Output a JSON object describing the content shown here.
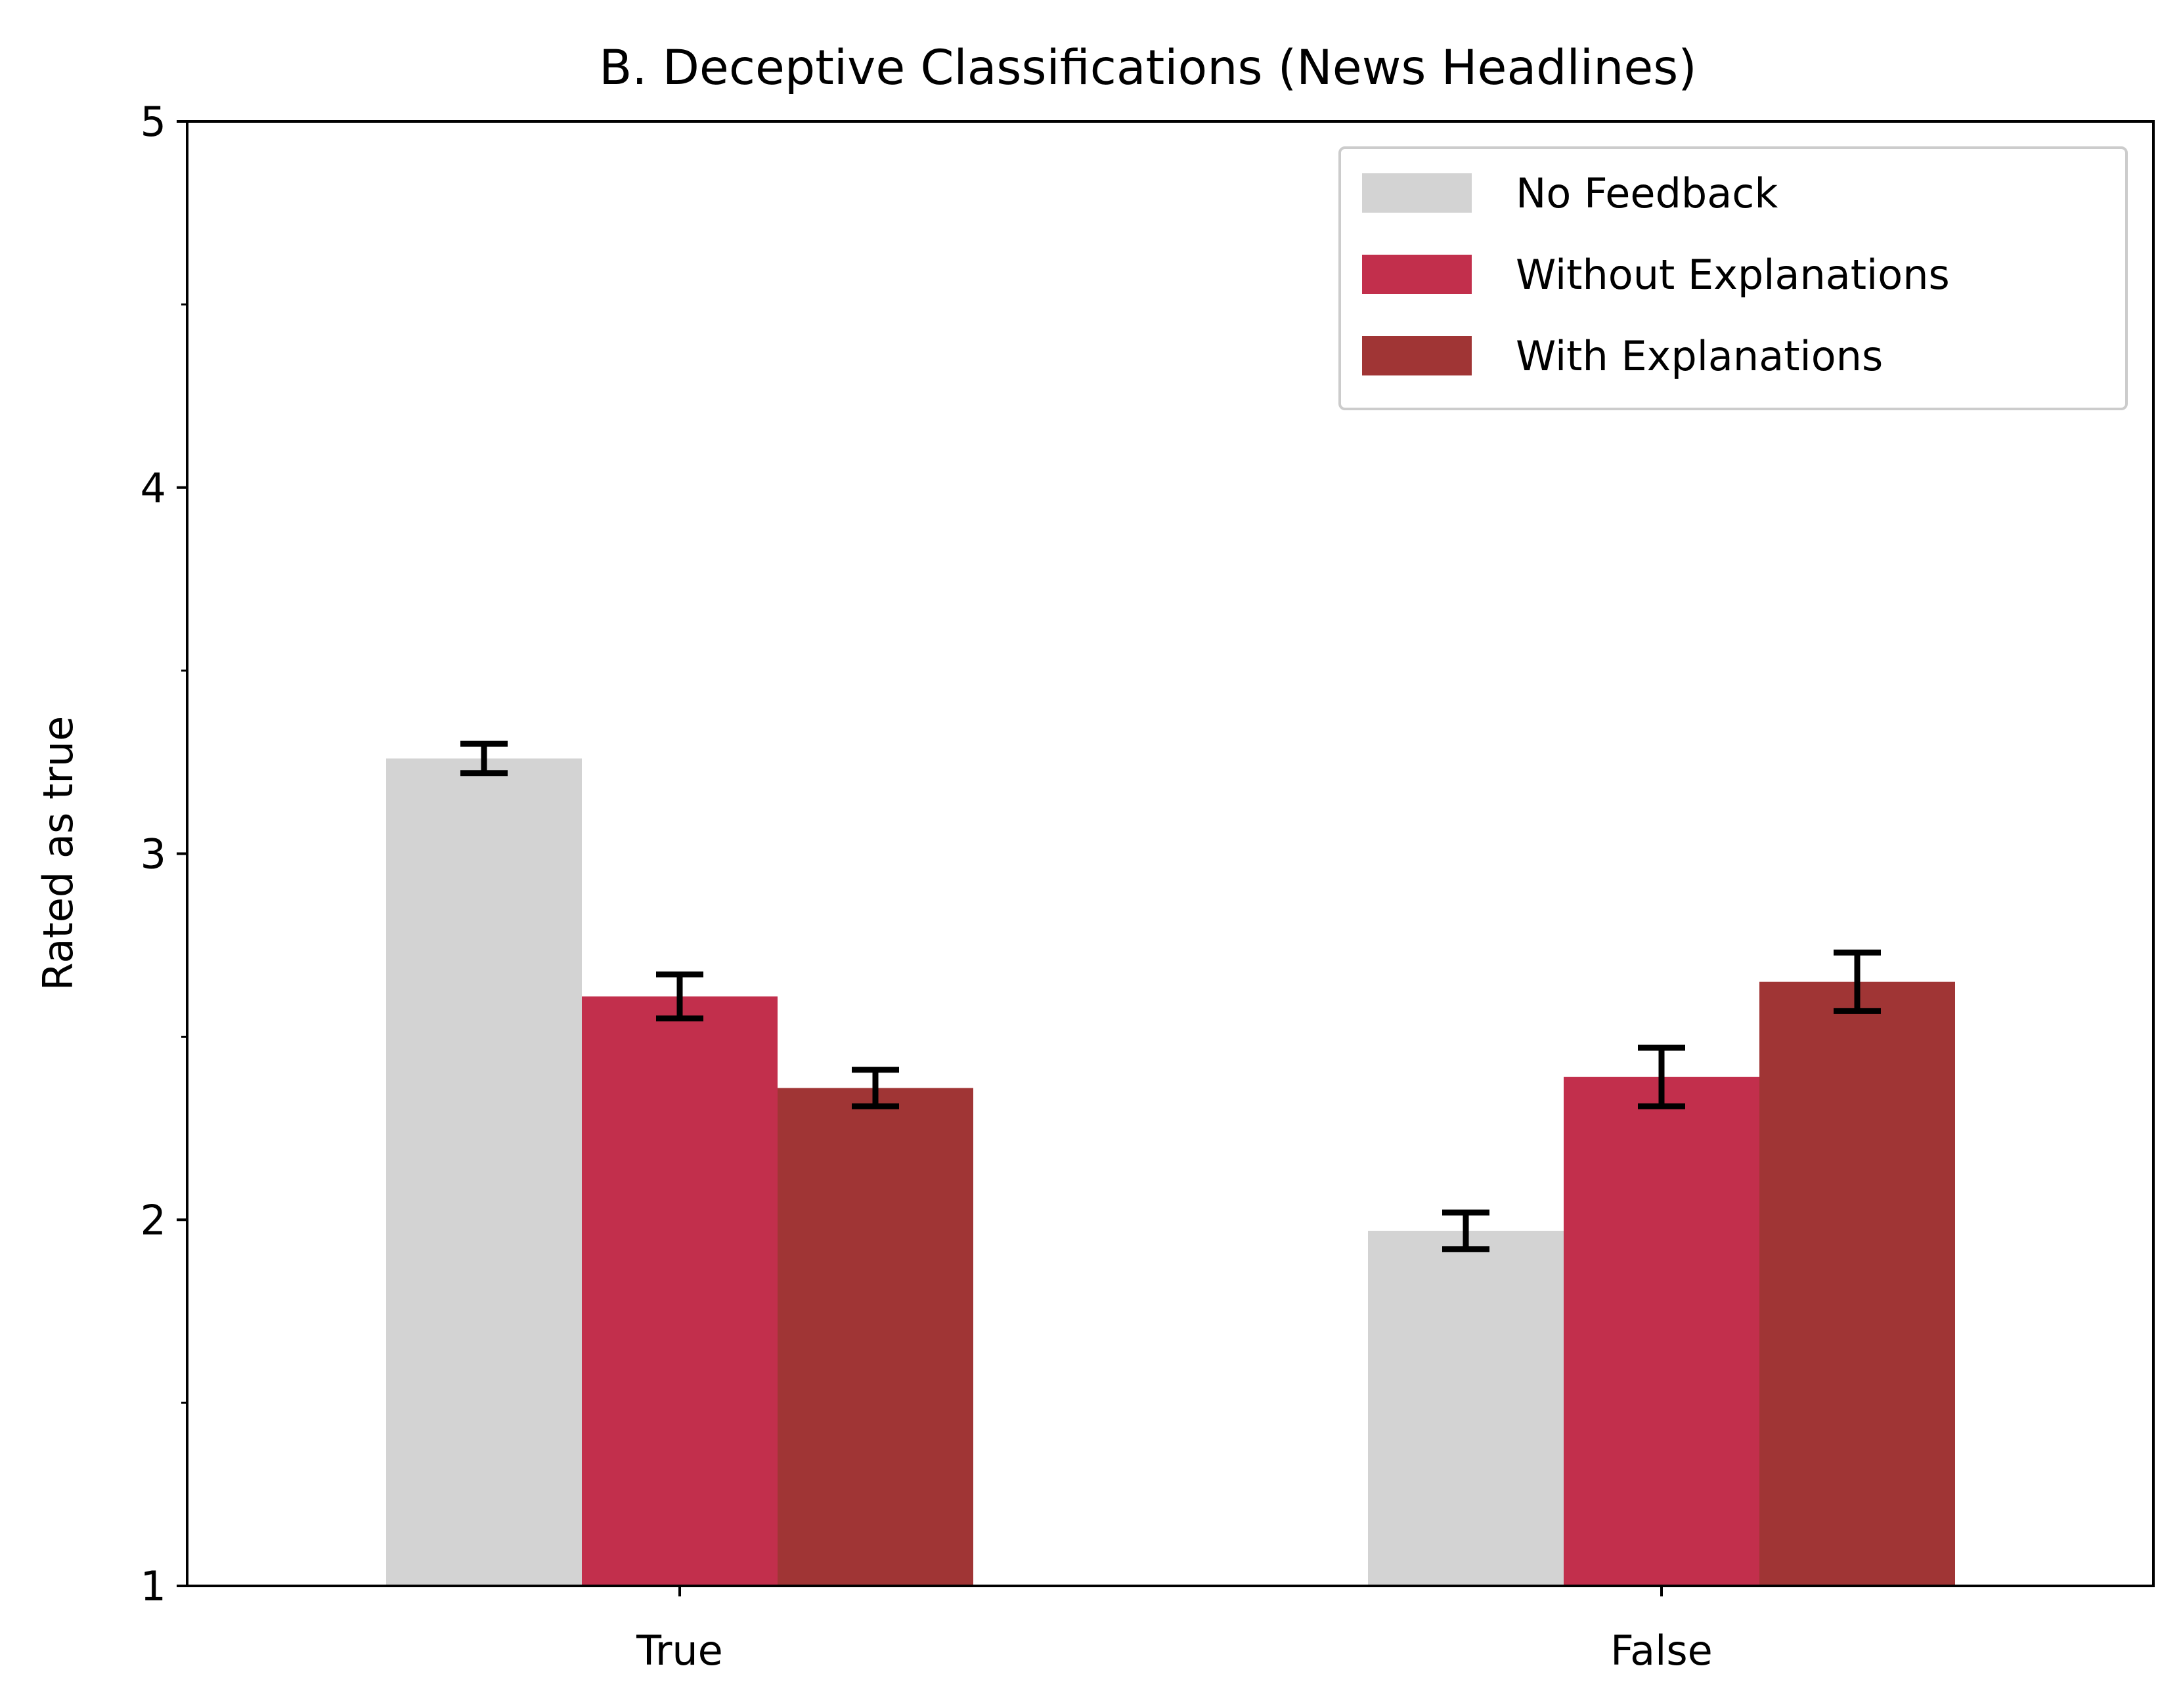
{
  "chart_data": {
    "type": "bar",
    "title": "B. Deceptive Classifications (News Headlines)",
    "xlabel": "",
    "ylabel": "Rated as true",
    "ylim": [
      1,
      5
    ],
    "yticks_major": [
      1,
      2,
      3,
      4,
      5
    ],
    "yticks_major_labels": [
      "1",
      "2",
      "3",
      "4",
      "5"
    ],
    "yticks_minor": [
      1.5,
      2.5,
      3.5,
      4.5
    ],
    "categories": [
      "True",
      "False"
    ],
    "series": [
      {
        "name": "No Feedback",
        "color": "#d3d3d3",
        "values": [
          3.26,
          1.97
        ],
        "errors": [
          0.04,
          0.05
        ]
      },
      {
        "name": "Without Explanations",
        "color": "#c22f4c",
        "values": [
          2.61,
          2.39
        ],
        "errors": [
          0.06,
          0.08
        ]
      },
      {
        "name": "With Explanations",
        "color": "#a03535",
        "values": [
          2.36,
          2.65
        ],
        "errors": [
          0.05,
          0.08
        ]
      }
    ],
    "grid": false,
    "legend_position": "top-right"
  }
}
